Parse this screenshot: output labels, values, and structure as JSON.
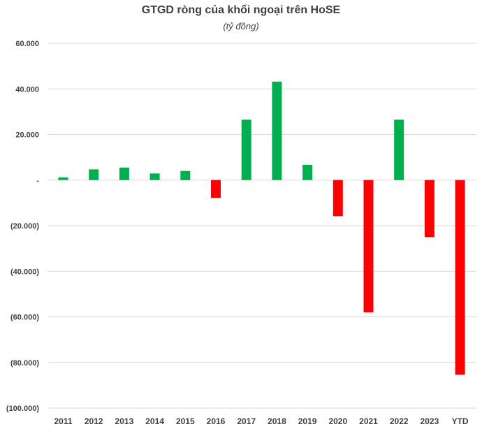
{
  "chart_data": {
    "type": "bar",
    "title": "GTGD ròng của khối ngoại trên HoSE",
    "subtitle": "(tỷ đồng)",
    "xlabel": "",
    "ylabel": "",
    "categories": [
      "2011",
      "2012",
      "2013",
      "2014",
      "2015",
      "2016",
      "2017",
      "2018",
      "2019",
      "2020",
      "2021",
      "2022",
      "2023",
      "YTD"
    ],
    "values": [
      1200,
      4700,
      5500,
      2900,
      4000,
      -7800,
      26500,
      43200,
      6700,
      -15800,
      -58000,
      26500,
      -25000,
      -85400
    ],
    "ylim": [
      -100000,
      60000
    ],
    "yticks": [
      60000,
      40000,
      20000,
      0,
      -20000,
      -40000,
      -60000,
      -80000,
      -100000
    ],
    "ytick_labels": [
      "60.000",
      "40.000",
      "20.000",
      "-",
      "(20.000)",
      "(40.000)",
      "(60.000)",
      "(80.000)",
      "(100.000)"
    ],
    "grid": true,
    "colors": {
      "positive": "#00B050",
      "negative": "#FF0000",
      "grid": "#D9D9D9",
      "text": "#404040"
    }
  }
}
